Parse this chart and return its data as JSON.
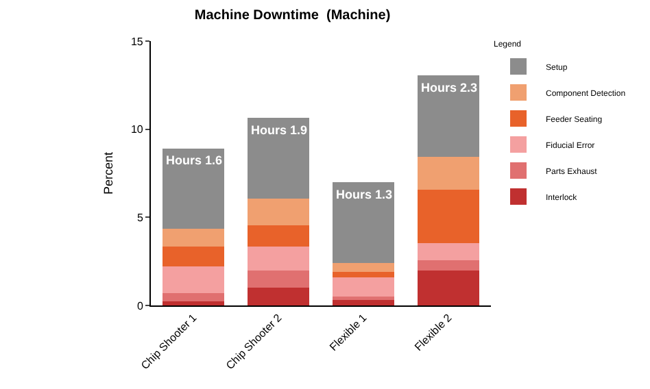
{
  "chart_data": {
    "type": "bar",
    "title": "Machine Downtime  (Machine)",
    "ylabel": "Percent",
    "legend_title": "Legend",
    "stacked": true,
    "legend": "top right",
    "grid": false,
    "categories": [
      "Chip Shooter 1",
      "Chip Shooter 2",
      "Flexible 1",
      "Flexible 2"
    ],
    "ylim": [
      0,
      15
    ],
    "yticks": [
      0,
      5,
      10,
      15
    ],
    "series": [
      {
        "name": "Interlock",
        "color": "#c03030",
        "values": [
          0.25,
          1.0,
          0.3,
          2.0
        ]
      },
      {
        "name": "Parts Exhaust",
        "color": "#e07070",
        "values": [
          0.45,
          1.0,
          0.2,
          0.55
        ]
      },
      {
        "name": "Fiducial Error",
        "color": "#f4a0a0",
        "values": [
          1.5,
          1.35,
          1.1,
          1.0
        ]
      },
      {
        "name": "Feeder Seating",
        "color": "#e8622a",
        "values": [
          1.15,
          1.2,
          0.3,
          3.0
        ]
      },
      {
        "name": "Component Detection",
        "color": "#f0a070",
        "values": [
          1.0,
          1.5,
          0.5,
          1.9
        ]
      },
      {
        "name": "Setup",
        "color": "#8c8c8c",
        "values": [
          4.55,
          4.6,
          4.6,
          4.6
        ]
      }
    ],
    "annotations": [
      {
        "text": "Hours 1.6",
        "x": "Chip Shooter 1",
        "y": 8.9
      },
      {
        "text": "Hours 1.9",
        "x": "Chip Shooter 2",
        "y": 10.65
      },
      {
        "text": "Hours 1.3",
        "x": "Flexible 1",
        "y": 7.0
      },
      {
        "text": "Hours 2.3",
        "x": "Flexible 2",
        "y": 13.05
      }
    ]
  }
}
